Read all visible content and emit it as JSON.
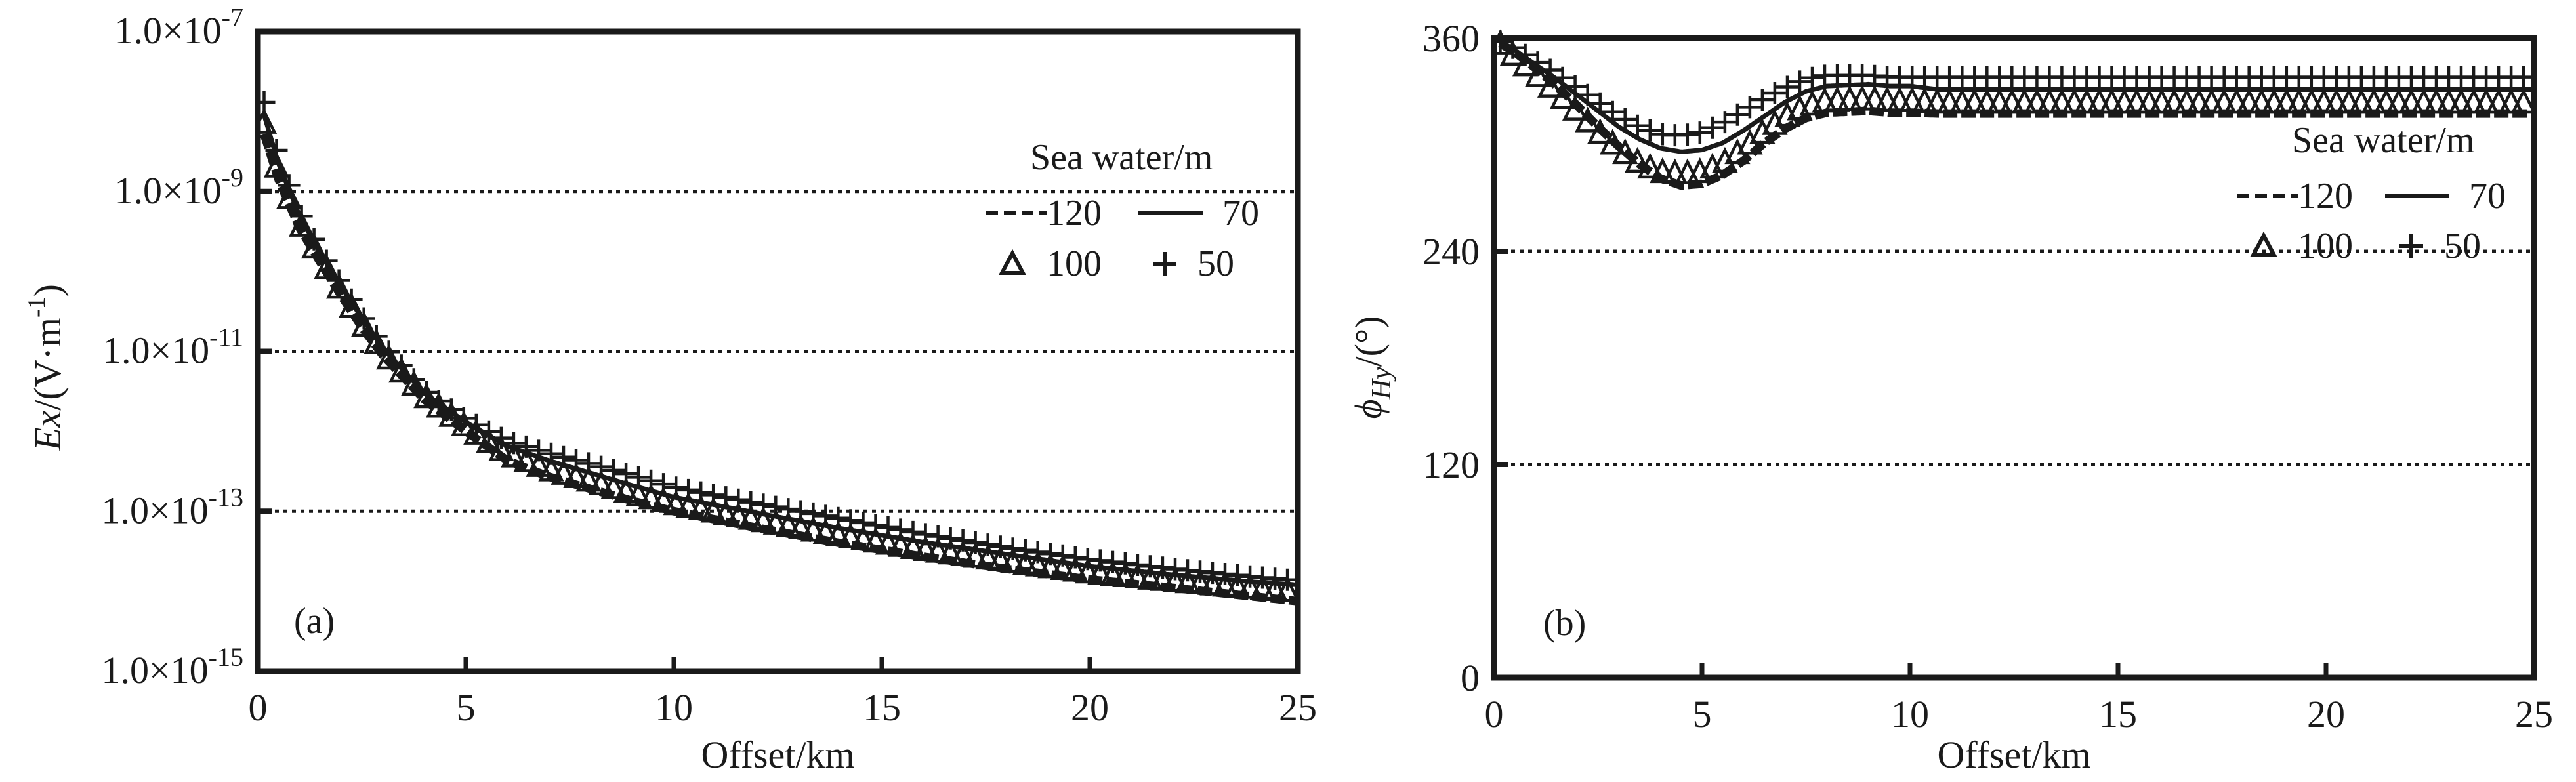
{
  "chart_data": [
    {
      "id": "a",
      "type": "line",
      "panel_label": "(a)",
      "xlabel": "Offset/km",
      "ylabel": {
        "main": "Ex",
        "unit": "/(V·m",
        "sup": "-1",
        "close": ")"
      },
      "xlim": [
        0,
        25
      ],
      "ylim": [
        1e-15,
        1e-07
      ],
      "yscale": "log",
      "x_ticks": [
        0,
        5,
        10,
        15,
        20,
        25
      ],
      "x_tick_labels": [
        "0",
        "5",
        "10",
        "15",
        "20",
        "25"
      ],
      "y_ticks": [
        1e-15,
        1e-13,
        1e-11,
        1e-09,
        1e-07
      ],
      "y_tick_labels": [
        {
          "base": "1.0×10",
          "exp": "-15"
        },
        {
          "base": "1.0×10",
          "exp": "-13"
        },
        {
          "base": "1.0×10",
          "exp": "-11"
        },
        {
          "base": "1.0×10",
          "exp": "-9"
        },
        {
          "base": "1.0×10",
          "exp": "-7"
        }
      ],
      "grid": {
        "horizontal": true,
        "style": "dotted",
        "at": [
          1e-13,
          1e-11,
          1e-09
        ]
      },
      "legend": {
        "title": "Sea water/m",
        "placement": "top-right"
      },
      "x": [
        0.15,
        0.5,
        1,
        1.5,
        2,
        2.5,
        3,
        4,
        5,
        6,
        7,
        8,
        9,
        10,
        12,
        14,
        16,
        18,
        20,
        22,
        24,
        25
      ],
      "series": [
        {
          "name": "120",
          "style": "dashed",
          "values": [
            5.2e-09,
            1.4e-09,
            3.5e-10,
            1.3e-10,
            5e-11,
            2e-11,
            9e-12,
            2.5e-12,
            1e-12,
            4.3e-13,
            2.7e-13,
            1.9e-13,
            1.35e-13,
            1e-13,
            6.2e-14,
            4e-14,
            2.7e-14,
            1.9e-14,
            1.4e-14,
            1.1e-14,
            8.5e-15,
            7.5e-15
          ]
        },
        {
          "name": "70",
          "style": "solid",
          "values": [
            9e-09,
            2.2e-09,
            5e-10,
            1.7e-10,
            6.5e-11,
            2.6e-11,
            1.1e-11,
            3e-12,
            1.3e-12,
            6.5e-13,
            4.3e-13,
            3e-13,
            2.1e-13,
            1.5e-13,
            9.5e-14,
            6.1e-14,
            4.1e-14,
            2.9e-14,
            2.05e-14,
            1.6e-14,
            1.3e-14,
            1.2e-14
          ]
        },
        {
          "name": "100",
          "style": "triangle",
          "values": [
            7e-09,
            1.6e-09,
            4e-10,
            1.4e-10,
            5.5e-11,
            2.2e-11,
            9.5e-12,
            2.7e-12,
            1.1e-12,
            5e-13,
            3.2e-13,
            2.3e-13,
            1.6e-13,
            1.2e-13,
            7.5e-14,
            4.8e-14,
            3.2e-14,
            2.3e-14,
            1.65e-14,
            1.3e-14,
            1.05e-14,
            9.5e-15
          ]
        },
        {
          "name": "50",
          "style": "plus",
          "values": [
            1.3e-08,
            2.6e-09,
            5.5e-10,
            1.8e-10,
            7e-11,
            2.8e-11,
            1.2e-11,
            3.2e-12,
            1.4e-12,
            7.5e-13,
            5.3e-13,
            3.9e-13,
            2.8e-13,
            2e-13,
            1.25e-13,
            8.1e-14,
            5.2e-14,
            3.5e-14,
            2.5e-14,
            1.9e-14,
            1.5e-14,
            1.35e-14
          ]
        }
      ]
    },
    {
      "id": "b",
      "type": "line",
      "panel_label": "(b)",
      "xlabel": "Offset/km",
      "ylabel": {
        "main": "ϕ",
        "sub": "Hy",
        "unit": "/(°)"
      },
      "xlim": [
        0,
        25
      ],
      "ylim": [
        0,
        360
      ],
      "yscale": "linear",
      "x_ticks": [
        0,
        5,
        10,
        15,
        20,
        25
      ],
      "x_tick_labels": [
        "0",
        "5",
        "10",
        "15",
        "20",
        "25"
      ],
      "y_ticks": [
        0,
        120,
        240,
        360
      ],
      "y_tick_labels": [
        "0",
        "120",
        "240",
        "360"
      ],
      "grid": {
        "horizontal": true,
        "style": "dotted",
        "at": [
          120,
          240
        ]
      },
      "legend": {
        "title": "Sea water/m",
        "placement": "top-right"
      },
      "x": [
        0.15,
        0.5,
        1,
        1.5,
        2,
        2.5,
        3,
        3.5,
        4,
        4.5,
        5,
        5.5,
        6,
        6.5,
        7,
        7.5,
        8,
        9,
        9.5,
        10,
        10.7,
        12,
        15,
        20,
        25
      ],
      "series": [
        {
          "name": "120",
          "style": "dashed",
          "values": [
            357,
            352,
            343,
            333,
            322,
            310,
            299,
            289,
            281,
            277,
            278,
            283,
            291,
            301,
            309,
            315,
            318,
            319,
            318,
            318,
            317.5,
            317.5,
            317.5,
            317.5,
            317.5
          ]
        },
        {
          "name": "70",
          "style": "solid",
          "values": [
            357,
            353,
            345,
            337,
            328,
            319,
            310,
            303,
            298,
            296,
            297,
            301,
            308,
            316,
            324,
            330,
            333,
            334,
            333,
            333,
            331,
            331,
            331,
            331,
            331
          ]
        },
        {
          "name": "100",
          "style": "triangle",
          "values": [
            356,
            349,
            339,
            329,
            318,
            307,
            297,
            289,
            284,
            283,
            284,
            289,
            297,
            307,
            315,
            321,
            324,
            325,
            324,
            324,
            323,
            323,
            323,
            323,
            323
          ]
        },
        {
          "name": "50",
          "style": "plus",
          "values": [
            358,
            354,
            347,
            340,
            332,
            324,
            316,
            310,
            306,
            305,
            307,
            312,
            319,
            326,
            332,
            337,
            339,
            339,
            338,
            338,
            338,
            338,
            338,
            338,
            338
          ]
        }
      ]
    }
  ],
  "legend_rows": [
    [
      {
        "series": "120",
        "style": "dashed",
        "label": "120"
      },
      {
        "series": "70",
        "style": "solid",
        "label": "70"
      }
    ],
    [
      {
        "series": "100",
        "style": "triangle",
        "label": "100"
      },
      {
        "series": "50",
        "style": "plus",
        "label": "50"
      }
    ]
  ],
  "colors": {
    "ink": "#1a1a1a",
    "background": "#ffffff"
  }
}
